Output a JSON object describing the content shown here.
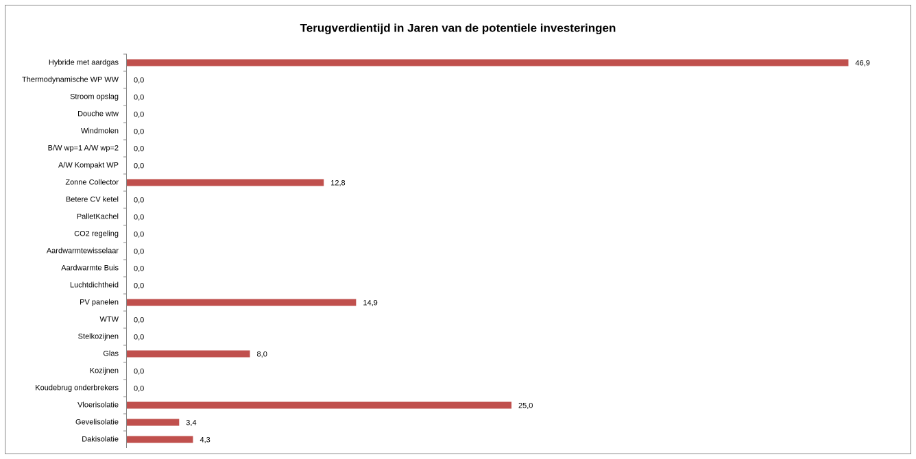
{
  "chart_data": {
    "type": "bar",
    "orientation": "horizontal",
    "title": "Terugverdientijd in Jaren van de potentiele investeringen",
    "categories": [
      "Hybride met aardgas",
      "Thermodynamische WP WW",
      "Stroom opslag",
      "Douche wtw",
      "Windmolen",
      "B/W wp=1 A/W wp=2",
      "A/W Kompakt WP",
      "Zonne Collector",
      "Betere CV ketel",
      "PalletKachel",
      "CO2 regeling",
      "Aardwarmtewisselaar",
      "Aardwarmte Buis",
      "Luchtdichtheid",
      "PV panelen",
      "WTW",
      "Stelkozijnen",
      "Glas",
      "Kozijnen",
      "Koudebrug onderbrekers",
      "Vloerisolatie",
      "Gevelisolatie",
      "Dakisolatie"
    ],
    "values": [
      46.9,
      0,
      0,
      0,
      0,
      0,
      0,
      12.8,
      0,
      0,
      0,
      0,
      0,
      0,
      14.9,
      0,
      0,
      8.0,
      0,
      0,
      25.0,
      3.4,
      4.3
    ],
    "value_labels": [
      "46,9",
      "0,0",
      "0,0",
      "0,0",
      "0,0",
      "0,0",
      "0,0",
      "12,8",
      "0,0",
      "0,0",
      "0,0",
      "0,0",
      "0,0",
      "0,0",
      "14,9",
      "0,0",
      "0,0",
      "8,0",
      "0,0",
      "0,0",
      "25,0",
      "3,4",
      "4,3"
    ],
    "color": "#c0504d",
    "xlim": [
      0,
      50
    ]
  }
}
